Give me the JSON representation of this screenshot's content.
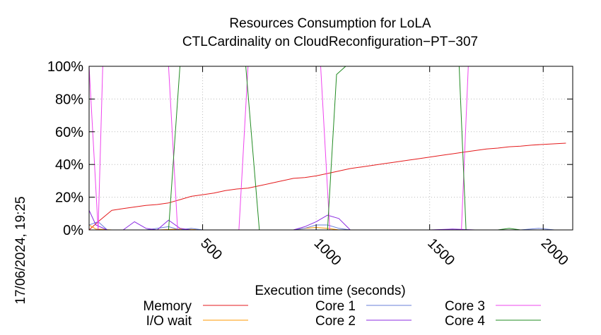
{
  "chart_data": {
    "type": "line",
    "title": "Resources Consumption for LoLA",
    "subtitle": "CTLCardinality on CloudReconfiguration−PT−307",
    "xlabel": "Execution time (seconds)",
    "timestamp": "17/06/2024, 19:25",
    "xlim": [
      0,
      2130
    ],
    "ylim": [
      0,
      100
    ],
    "x_ticks": [
      {
        "value": 500,
        "label": "500"
      },
      {
        "value": 1000,
        "label": "1000"
      },
      {
        "value": 1500,
        "label": "1500"
      },
      {
        "value": 2000,
        "label": "2000"
      }
    ],
    "y_ticks": [
      {
        "value": 0,
        "label": "0%"
      },
      {
        "value": 20,
        "label": "20%"
      },
      {
        "value": 40,
        "label": "40%"
      },
      {
        "value": 60,
        "label": "60%"
      },
      {
        "value": 80,
        "label": "80%"
      },
      {
        "value": 100,
        "label": "100%"
      }
    ],
    "legend_position": "bottom",
    "series": [
      {
        "name": "Memory",
        "color": "#e41a1c",
        "points": [
          [
            0,
            0
          ],
          [
            40,
            5
          ],
          [
            100,
            12
          ],
          [
            150,
            13
          ],
          [
            200,
            14
          ],
          [
            250,
            15
          ],
          [
            300,
            15.5
          ],
          [
            350,
            16.5
          ],
          [
            400,
            18.5
          ],
          [
            450,
            20.5
          ],
          [
            500,
            21.5
          ],
          [
            550,
            22.5
          ],
          [
            600,
            24
          ],
          [
            650,
            25
          ],
          [
            700,
            25.5
          ],
          [
            750,
            27
          ],
          [
            800,
            28.5
          ],
          [
            850,
            30
          ],
          [
            900,
            31.5
          ],
          [
            950,
            32
          ],
          [
            1000,
            33
          ],
          [
            1050,
            34.5
          ],
          [
            1100,
            36
          ],
          [
            1150,
            37.5
          ],
          [
            1200,
            38.5
          ],
          [
            1250,
            39.5
          ],
          [
            1300,
            40.5
          ],
          [
            1350,
            41.5
          ],
          [
            1400,
            42.5
          ],
          [
            1450,
            43.5
          ],
          [
            1500,
            44.5
          ],
          [
            1550,
            45.5
          ],
          [
            1600,
            46.5
          ],
          [
            1650,
            47.5
          ],
          [
            1700,
            48.5
          ],
          [
            1750,
            49.5
          ],
          [
            1800,
            50
          ],
          [
            1850,
            50.8
          ],
          [
            1900,
            51.2
          ],
          [
            1950,
            51.8
          ],
          [
            2000,
            52.3
          ],
          [
            2100,
            53
          ]
        ]
      },
      {
        "name": "I/O wait",
        "color": "#ff9900",
        "points": [
          [
            0,
            3
          ],
          [
            30,
            0.5
          ],
          [
            100,
            0
          ],
          [
            200,
            0
          ],
          [
            300,
            0
          ],
          [
            400,
            0.5
          ],
          [
            500,
            0
          ],
          [
            600,
            0
          ],
          [
            700,
            0
          ],
          [
            800,
            0
          ],
          [
            900,
            0
          ],
          [
            950,
            1
          ],
          [
            1000,
            1.5
          ],
          [
            1050,
            1
          ],
          [
            1100,
            0
          ],
          [
            1200,
            0
          ],
          [
            1400,
            0
          ],
          [
            1600,
            0
          ],
          [
            1800,
            0
          ],
          [
            2000,
            0
          ],
          [
            2100,
            0
          ]
        ]
      },
      {
        "name": "Core 1",
        "color": "#6a7fd9",
        "points": [
          [
            0,
            3
          ],
          [
            40,
            5
          ],
          [
            80,
            0
          ],
          [
            150,
            0
          ],
          [
            250,
            0
          ],
          [
            300,
            1
          ],
          [
            350,
            2
          ],
          [
            400,
            0
          ],
          [
            450,
            1
          ],
          [
            500,
            0
          ],
          [
            550,
            0
          ],
          [
            600,
            0
          ],
          [
            650,
            0
          ],
          [
            700,
            0
          ],
          [
            800,
            0
          ],
          [
            900,
            0
          ],
          [
            950,
            1
          ],
          [
            1000,
            3
          ],
          [
            1050,
            3
          ],
          [
            1100,
            1
          ],
          [
            1150,
            0
          ],
          [
            1200,
            0
          ],
          [
            1400,
            0
          ],
          [
            1600,
            0
          ],
          [
            1800,
            0
          ],
          [
            1900,
            0
          ],
          [
            1980,
            1
          ],
          [
            2050,
            0
          ],
          [
            2100,
            0
          ]
        ]
      },
      {
        "name": "Core 2",
        "color": "#8b2be2",
        "points": [
          [
            0,
            12
          ],
          [
            30,
            3
          ],
          [
            80,
            0
          ],
          [
            150,
            0
          ],
          [
            200,
            5
          ],
          [
            250,
            1
          ],
          [
            300,
            0
          ],
          [
            350,
            6
          ],
          [
            400,
            1
          ],
          [
            450,
            0
          ],
          [
            500,
            0
          ],
          [
            550,
            0
          ],
          [
            600,
            0
          ],
          [
            650,
            0
          ],
          [
            700,
            0
          ],
          [
            800,
            0
          ],
          [
            900,
            0
          ],
          [
            950,
            2
          ],
          [
            1000,
            5
          ],
          [
            1050,
            9
          ],
          [
            1100,
            7
          ],
          [
            1150,
            0
          ],
          [
            1200,
            0
          ],
          [
            1400,
            0
          ],
          [
            1500,
            0
          ],
          [
            1600,
            0.5
          ],
          [
            1700,
            0
          ],
          [
            1900,
            0
          ],
          [
            2000,
            0
          ],
          [
            2100,
            0
          ]
        ]
      },
      {
        "name": "Core 3",
        "color": "#ee44ee",
        "points": [
          [
            0,
            100
          ],
          [
            40,
            0
          ],
          [
            60,
            100
          ],
          [
            350,
            100
          ],
          [
            390,
            0
          ],
          [
            660,
            0
          ],
          [
            700,
            100
          ],
          [
            1020,
            100
          ],
          [
            1060,
            0
          ],
          [
            1640,
            0
          ],
          [
            1670,
            100
          ],
          [
            2100,
            100
          ]
        ]
      },
      {
        "name": "Core 4",
        "color": "#228b22",
        "points": [
          [
            0,
            0
          ],
          [
            350,
            0
          ],
          [
            400,
            100
          ],
          [
            690,
            100
          ],
          [
            720,
            50
          ],
          [
            750,
            0
          ],
          [
            1050,
            0
          ],
          [
            1090,
            95
          ],
          [
            1130,
            100
          ],
          [
            1630,
            100
          ],
          [
            1660,
            0
          ],
          [
            1800,
            0
          ],
          [
            1850,
            1
          ],
          [
            1900,
            0
          ],
          [
            2100,
            0
          ]
        ]
      }
    ]
  }
}
